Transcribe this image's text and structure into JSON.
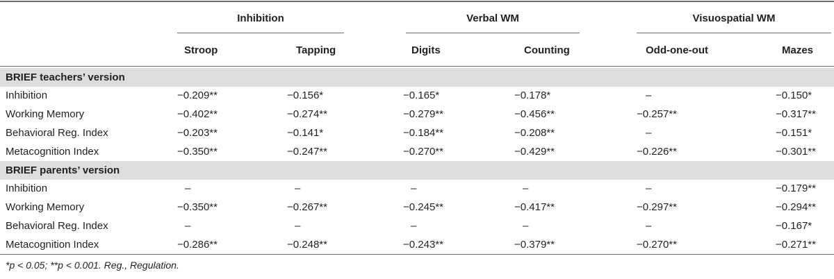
{
  "groups": [
    "Inhibition",
    "Verbal WM",
    "Visuospatial WM"
  ],
  "columns": [
    "Stroop",
    "Tapping",
    "Digits",
    "Counting",
    "Odd-one-out",
    "Mazes"
  ],
  "sections": [
    {
      "title": "BRIEF teachers’ version",
      "rows": [
        {
          "label": "Inhibition",
          "cells": [
            "−0.209**",
            "−0.156*",
            "−0.165*",
            "−0.178*",
            "–",
            "−0.150*"
          ]
        },
        {
          "label": "Working Memory",
          "cells": [
            "−0.402**",
            "−0.274**",
            "−0.279**",
            "−0.456**",
            "−0.257**",
            "−0.317**"
          ]
        },
        {
          "label": "Behavioral Reg. Index",
          "cells": [
            "−0.203**",
            "−0.141*",
            "−0.184**",
            "−0.208**",
            "–",
            "−0.151*"
          ]
        },
        {
          "label": "Metacognition Index",
          "cells": [
            "−0.350**",
            "−0.247**",
            "−0.270**",
            "−0.429**",
            "−0.226**",
            "−0.301**"
          ]
        }
      ]
    },
    {
      "title": "BRIEF parents’ version",
      "rows": [
        {
          "label": "Inhibition",
          "cells": [
            "–",
            "–",
            "–",
            "–",
            "–",
            "−0.179**"
          ]
        },
        {
          "label": "Working Memory",
          "cells": [
            "−0.350**",
            "−0.267**",
            "−0.245**",
            "−0.417**",
            "−0.297**",
            "−0.294**"
          ]
        },
        {
          "label": "Behavioral Reg. Index",
          "cells": [
            "–",
            "–",
            "–",
            "–",
            "–",
            "−0.167*"
          ]
        },
        {
          "label": "Metacognition Index",
          "cells": [
            "−0.286**",
            "−0.248**",
            "−0.243**",
            "−0.379**",
            "−0.270**",
            "−0.271**"
          ]
        }
      ]
    }
  ],
  "footnote": "*p < 0.05; **p < 0.001. Reg., Regulation."
}
